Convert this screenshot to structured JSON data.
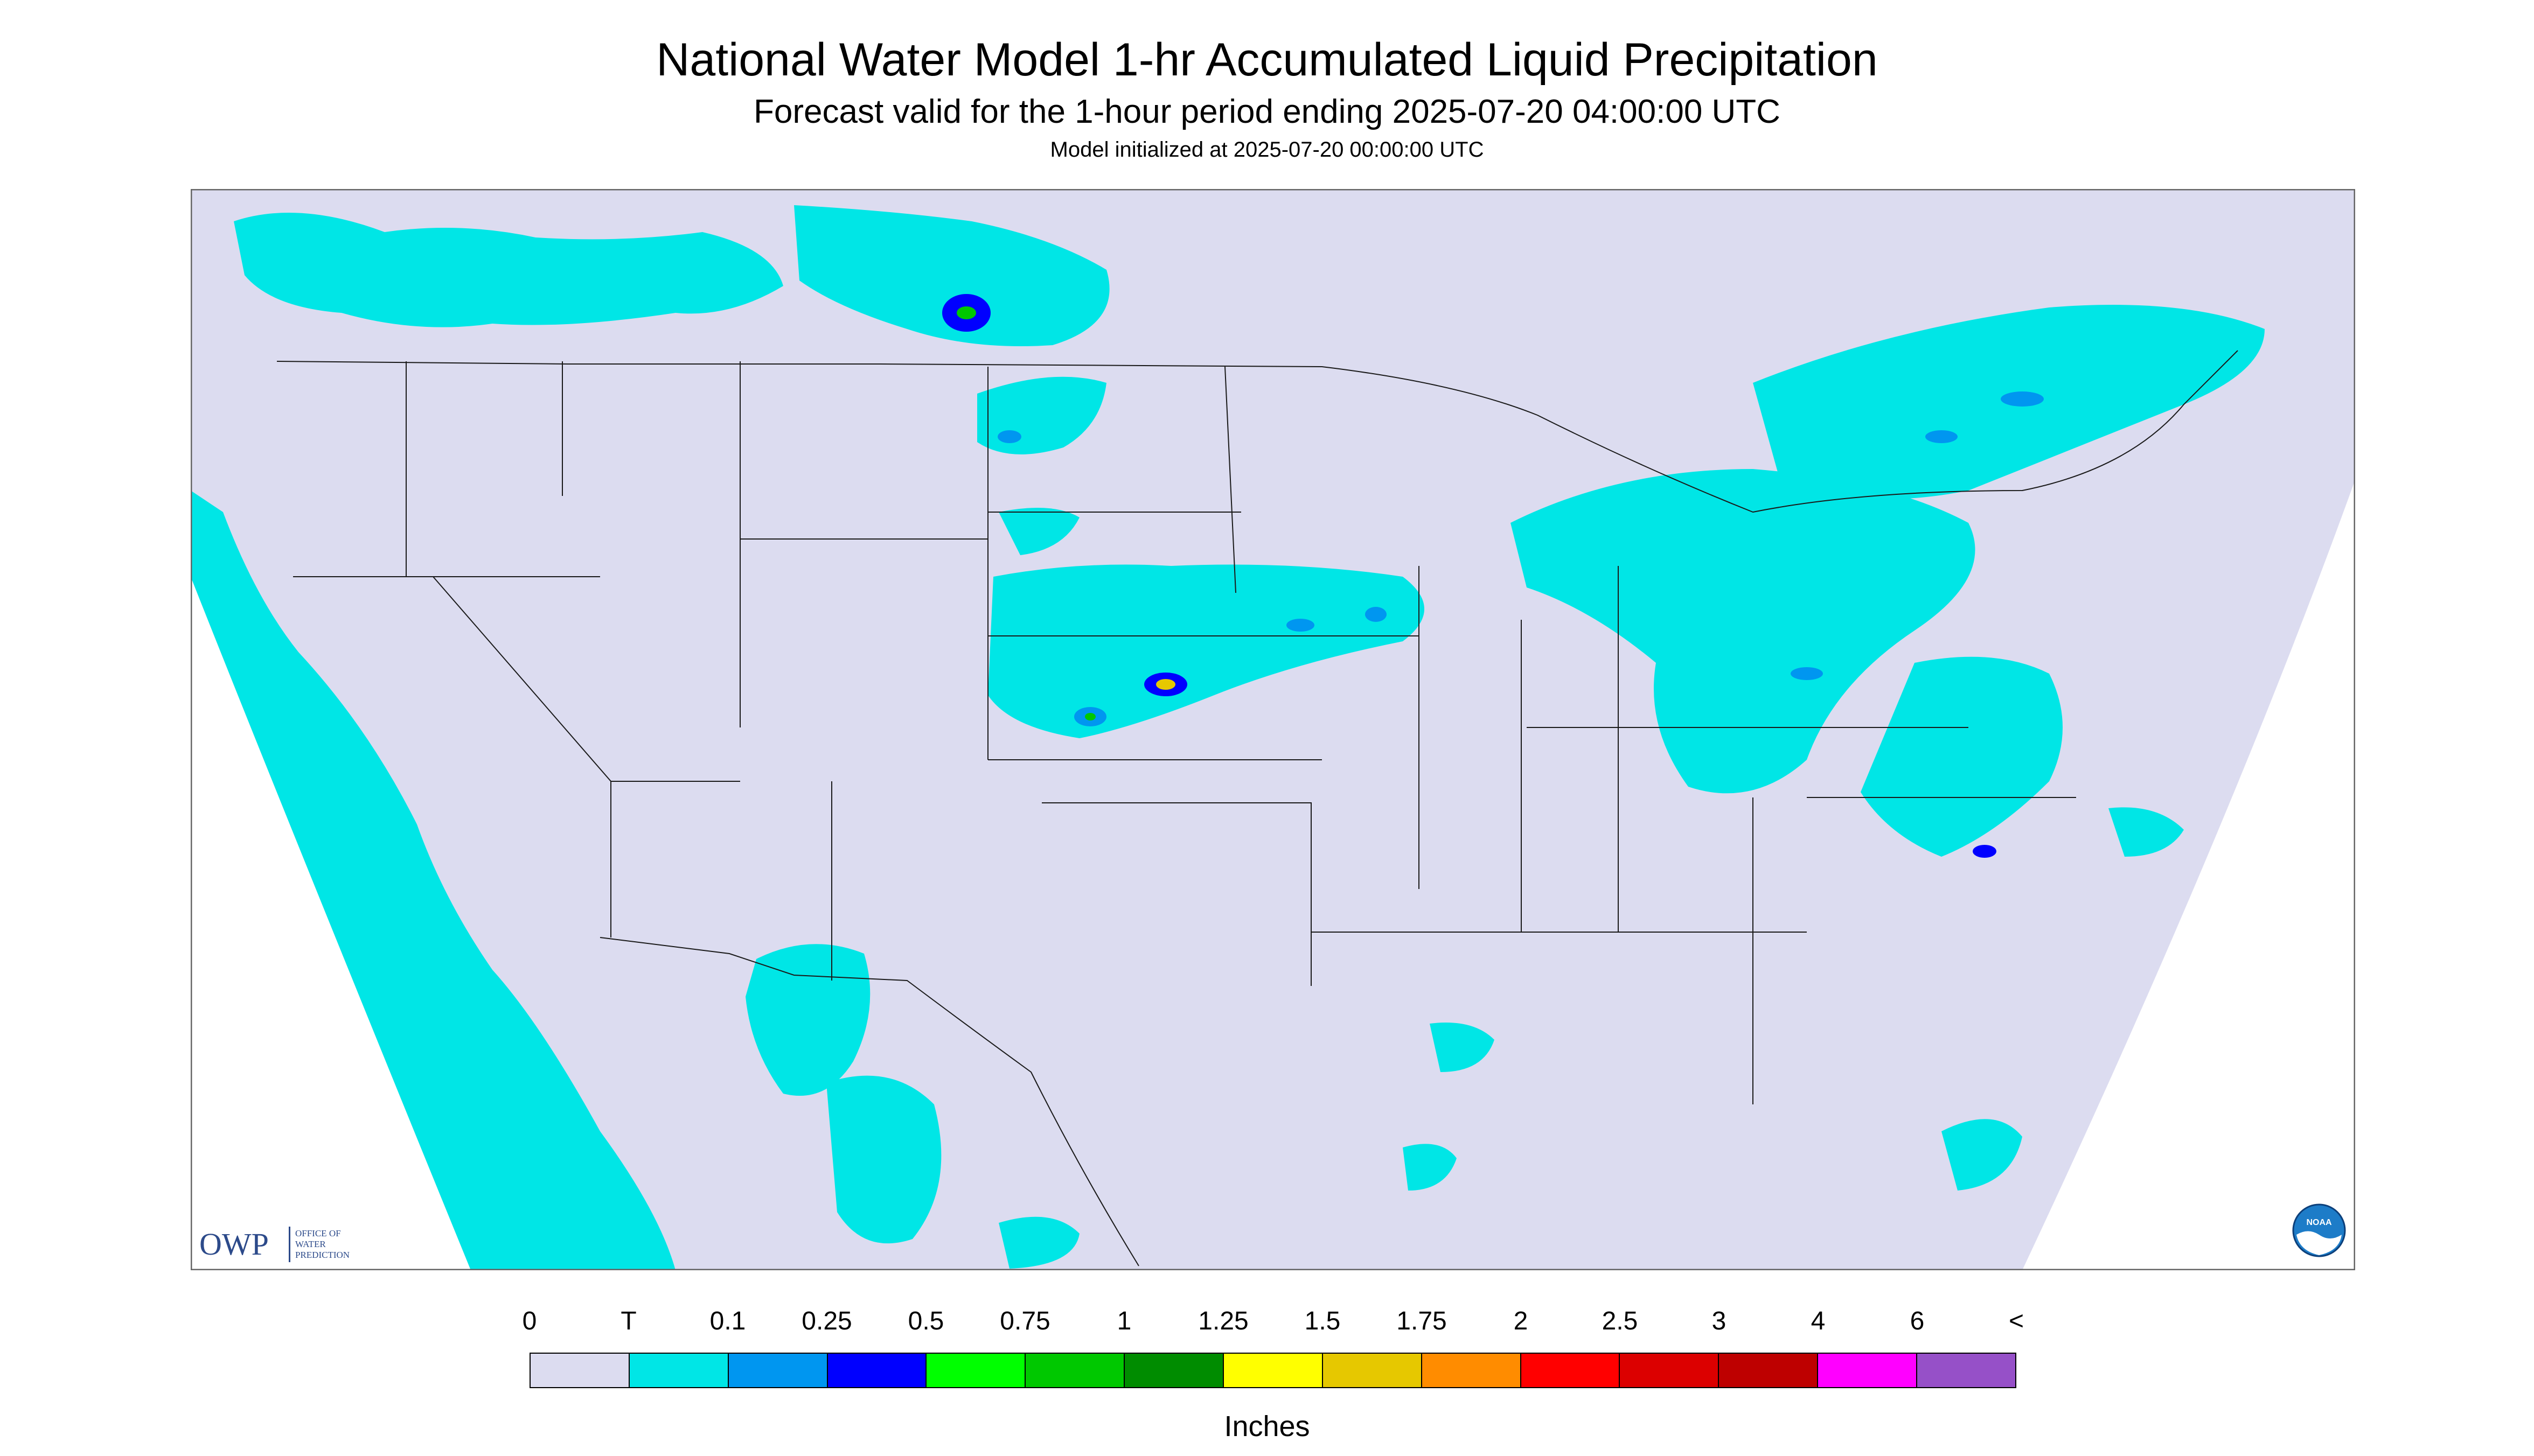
{
  "title": "National Water Model 1-hr Accumulated Liquid Precipitation",
  "subtitle": "Forecast valid for the 1-hour period ending 2025-07-20 04:00:00 UTC",
  "init_line": "Model initialized at 2025-07-20 00:00:00 UTC",
  "logos": {
    "owp_letters": "OWP",
    "owp_text": [
      "OFFICE OF",
      "WATER",
      "PREDICTION"
    ],
    "noaa_text": "NOAA"
  },
  "legend": {
    "tick_labels": [
      "0",
      "T",
      "0.1",
      "0.25",
      "0.5",
      "0.75",
      "1",
      "1.25",
      "1.5",
      "1.75",
      "2",
      "2.5",
      "3",
      "4",
      "6",
      "<"
    ],
    "colors": [
      "#dcdcf0",
      "#00e6e6",
      "#0096f0",
      "#0000ff",
      "#00ff00",
      "#00c800",
      "#008c00",
      "#ffff00",
      "#e6c800",
      "#ff8c00",
      "#ff0000",
      "#dc0000",
      "#be0000",
      "#ff00ff",
      "#9650c8"
    ],
    "units": "Inches"
  }
}
